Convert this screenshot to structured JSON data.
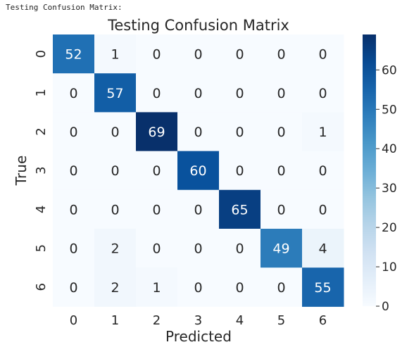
{
  "output_label": "Testing Confusion Matrix:",
  "colors": {
    "low": "#f7fbff",
    "high": "#08306b",
    "text_dark": "#262626",
    "text_light": "#ffffff"
  },
  "chart_data": {
    "type": "heatmap",
    "title": "Testing Confusion Matrix",
    "xlabel": "Predicted",
    "ylabel": "True",
    "x_categories": [
      "0",
      "1",
      "2",
      "3",
      "4",
      "5",
      "6"
    ],
    "y_categories": [
      "0",
      "1",
      "2",
      "3",
      "4",
      "5",
      "6"
    ],
    "values": [
      [
        52,
        1,
        0,
        0,
        0,
        0,
        0
      ],
      [
        0,
        57,
        0,
        0,
        0,
        0,
        0
      ],
      [
        0,
        0,
        69,
        0,
        0,
        0,
        1
      ],
      [
        0,
        0,
        0,
        60,
        0,
        0,
        0
      ],
      [
        0,
        0,
        0,
        0,
        65,
        0,
        0
      ],
      [
        0,
        2,
        0,
        0,
        0,
        49,
        4
      ],
      [
        0,
        2,
        1,
        0,
        0,
        0,
        55
      ]
    ],
    "vmin": 0,
    "vmax": 69,
    "colorbar_ticks": [
      0,
      10,
      20,
      30,
      40,
      50,
      60
    ],
    "colormap": "Blues"
  }
}
